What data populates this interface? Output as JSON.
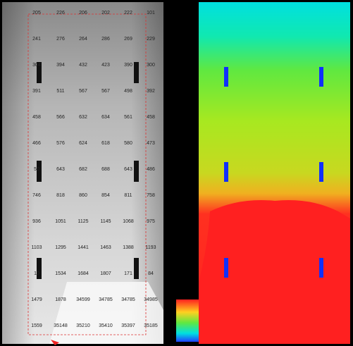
{
  "illuminance_grid": {
    "rows": [
      [
        205,
        226,
        206,
        202,
        222,
        101
      ],
      [
        241,
        276,
        264,
        286,
        269,
        229
      ],
      [
        304,
        394,
        432,
        423,
        390,
        300
      ],
      [
        391,
        511,
        567,
        567,
        498,
        392
      ],
      [
        458,
        566,
        632,
        634,
        561,
        458
      ],
      [
        466,
        576,
        624,
        618,
        580,
        473
      ],
      [
        50,
        643,
        682,
        688,
        643,
        486
      ],
      [
        746,
        818,
        860,
        854,
        811,
        758
      ],
      [
        936,
        1051,
        1125,
        1145,
        1068,
        975
      ],
      [
        1103,
        1295,
        1441,
        1463,
        1388,
        1193
      ],
      [
        10,
        1534,
        1684,
        1807,
        171,
        84
      ],
      [
        1479,
        1878,
        34599,
        34785,
        34785,
        34985
      ],
      [
        1559,
        35148,
        35210,
        35410,
        35397,
        35185
      ]
    ]
  }
}
